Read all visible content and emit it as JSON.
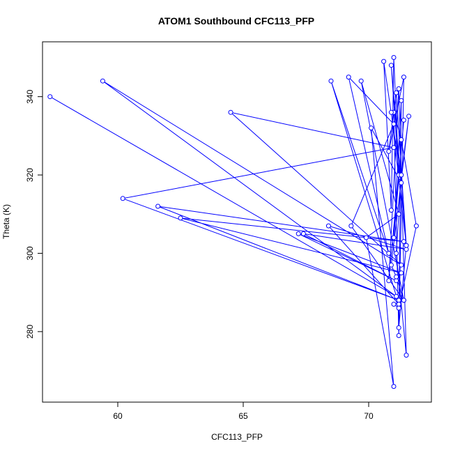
{
  "chart_data": {
    "type": "line",
    "title": "ATOM1 Southbound CFC113_PFP",
    "xlabel": "CFC113_PFP",
    "ylabel": "Theta (K)",
    "xlim": [
      57,
      72.5
    ],
    "ylim": [
      262,
      354
    ],
    "x_ticks": [
      60,
      65,
      70
    ],
    "y_ticks": [
      280,
      300,
      320,
      340
    ],
    "grid": false,
    "legend": "none",
    "series_color": "#0000ff",
    "x": [
      57.3,
      71.1,
      59.4,
      71.3,
      64.5,
      71.0,
      60.2,
      71.2,
      61.6,
      71.4,
      62.5,
      71.3,
      67.2,
      71.1,
      67.4,
      71.5,
      68.4,
      71.2,
      68.5,
      70.8,
      69.2,
      71.0,
      69.3,
      71.4,
      69.7,
      71.2,
      69.9,
      71.0,
      70.1,
      71.3,
      70.6,
      70.9,
      71.0,
      71.2,
      70.9,
      71.5,
      71.1,
      70.8,
      71.4,
      71.2,
      71.0,
      71.3,
      71.9,
      71.2,
      71.0,
      71.4,
      71.1,
      70.9,
      71.6,
      71.3,
      71.1,
      71.5,
      71.2,
      70.8,
      71.4,
      71.0,
      71.3,
      71.2,
      71.5,
      70.9
    ],
    "y": [
      340,
      289,
      344,
      297,
      336,
      327,
      314,
      288,
      312,
      303,
      309,
      295,
      305,
      293,
      305,
      301,
      307,
      287,
      344,
      300,
      345,
      333,
      307,
      288,
      344,
      310,
      304,
      266,
      332,
      318,
      349,
      311,
      350,
      320,
      348,
      302,
      341,
      326,
      345,
      279,
      336,
      329,
      307,
      286,
      287,
      288,
      294,
      297,
      335,
      320,
      300,
      274,
      342,
      293,
      334,
      304,
      339,
      281,
      302,
      336
    ]
  }
}
